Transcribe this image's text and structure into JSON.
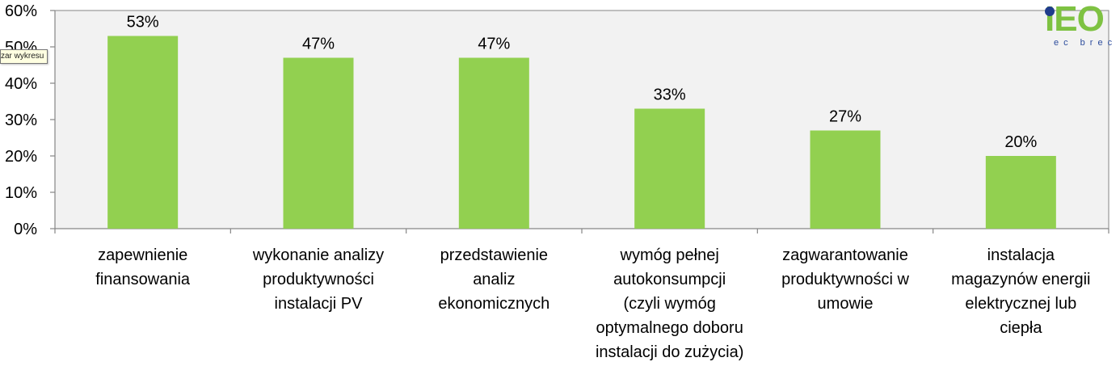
{
  "chart_data": {
    "type": "bar",
    "categories": [
      [
        "zapewnienie",
        "finansowania"
      ],
      [
        "wykonanie analizy",
        "produktywności",
        "instalacji PV"
      ],
      [
        "przedstawienie",
        "analiz",
        "ekonomicznych"
      ],
      [
        "wymóg pełnej",
        "autokonsumpcji",
        "(czyli wymóg",
        "optymalnego doboru",
        "instalacji do zużycia)"
      ],
      [
        "zagwarantowanie",
        "produktywności w",
        "umowie"
      ],
      [
        "instalacja",
        "magazynów energii",
        "elektrycznej lub",
        "ciepła"
      ]
    ],
    "values": [
      53,
      47,
      47,
      33,
      27,
      20
    ],
    "data_labels": [
      "53%",
      "47%",
      "47%",
      "33%",
      "27%",
      "20%"
    ],
    "yticks": [
      "0%",
      "10%",
      "20%",
      "30%",
      "40%",
      "50%",
      "60%"
    ],
    "ylim": [
      0,
      60
    ],
    "grid": false,
    "bar_color": "#92d050",
    "plot_background": "#f2f2f2",
    "axis_color": "#868686"
  },
  "tooltip": {
    "text": "zar wykresu"
  },
  "logo": {
    "main": "IEO",
    "sub": "ec brec",
    "accent": "#7ec242",
    "dot": "#1f3c8c"
  }
}
